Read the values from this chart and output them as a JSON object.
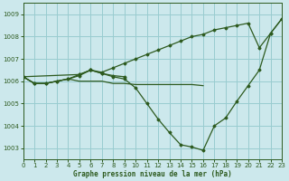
{
  "title": "Graphe pression niveau de la mer (hPa)",
  "background_color": "#cce8ec",
  "grid_color": "#99ccd0",
  "line_color": "#2d5a1e",
  "xlim": [
    0,
    23
  ],
  "ylim": [
    1002.5,
    1009.5
  ],
  "yticks": [
    1003,
    1004,
    1005,
    1006,
    1007,
    1008,
    1009
  ],
  "xticks": [
    0,
    1,
    2,
    3,
    4,
    5,
    6,
    7,
    8,
    9,
    10,
    11,
    12,
    13,
    14,
    15,
    16,
    17,
    18,
    19,
    20,
    21,
    22,
    23
  ],
  "series": [
    {
      "x": [
        0,
        5,
        6,
        7,
        8,
        9,
        10,
        11,
        12,
        13,
        14,
        15,
        16,
        17,
        18,
        19,
        20,
        21,
        22,
        23
      ],
      "y": [
        1006.2,
        1006.3,
        1006.5,
        1006.4,
        1006.6,
        1006.8,
        1007.0,
        1007.2,
        1007.4,
        1007.6,
        1007.8,
        1008.0,
        1008.1,
        1008.3,
        1008.4,
        1008.5,
        1008.6,
        1007.5,
        1008.15,
        1008.8
      ],
      "marker": true
    },
    {
      "x": [
        0,
        1,
        2,
        3,
        4,
        5,
        6,
        7,
        8,
        9,
        10,
        11,
        12,
        13,
        14,
        15,
        16,
        17,
        18,
        19,
        20,
        21,
        22,
        23
      ],
      "y": [
        1006.2,
        1005.9,
        1005.9,
        1006.0,
        1006.1,
        1006.25,
        1006.5,
        1006.35,
        1006.2,
        1006.1,
        1005.7,
        1005.0,
        1004.3,
        1003.7,
        1003.15,
        1003.05,
        1002.9,
        1004.0,
        1004.35,
        1005.1,
        1005.8,
        1006.5,
        1008.15,
        1008.8
      ],
      "marker": true
    },
    {
      "x": [
        0,
        1,
        2,
        3,
        4,
        5,
        6,
        7,
        8,
        9,
        10,
        11,
        12,
        13,
        14,
        15,
        16
      ],
      "y": [
        1006.2,
        1005.9,
        1005.9,
        1006.0,
        1006.1,
        1006.0,
        1006.0,
        1006.0,
        1005.9,
        1005.9,
        1005.85,
        1005.85,
        1005.85,
        1005.85,
        1005.85,
        1005.85,
        1005.8
      ],
      "marker": false
    },
    {
      "x": [
        0,
        1,
        2,
        3,
        4,
        5,
        6,
        7,
        8,
        9
      ],
      "y": [
        1006.2,
        1005.9,
        1005.9,
        1006.0,
        1006.1,
        1006.3,
        1006.5,
        1006.35,
        1006.25,
        1006.2
      ],
      "marker": true
    }
  ]
}
